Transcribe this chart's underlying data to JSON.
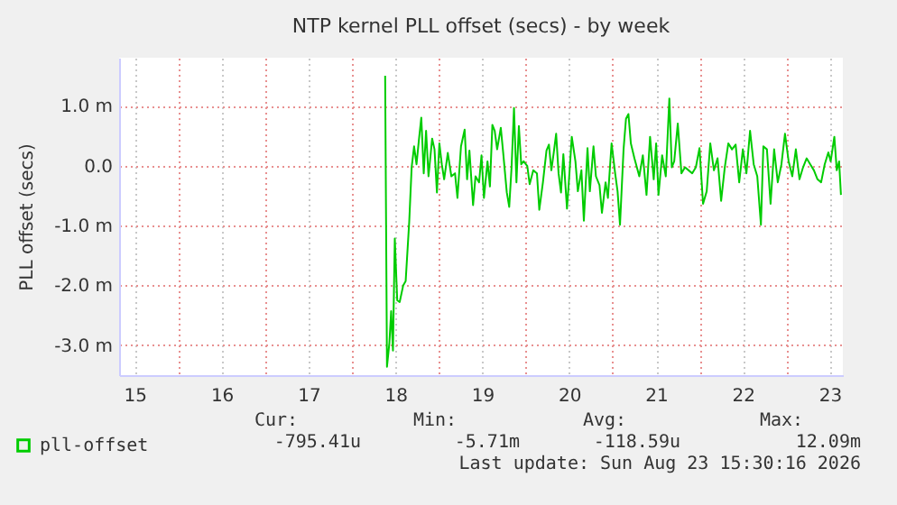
{
  "chart_data": {
    "type": "line",
    "title": "NTP kernel PLL offset (secs) - by week",
    "ylabel": "PLL offset (secs)",
    "xlim": [
      14.82,
      23.15
    ],
    "xticks": [
      15,
      {
        "value": 15.5,
        "label": null
      },
      16,
      {
        "value": 16.5,
        "label": null
      },
      17,
      {
        "value": 17.5,
        "label": null
      },
      18,
      {
        "value": 18.5,
        "label": null
      },
      19,
      {
        "value": 19.5,
        "label": null
      },
      20,
      {
        "value": 20.5,
        "label": null
      },
      21,
      {
        "value": 21.5,
        "label": null
      },
      22,
      {
        "value": 22.5,
        "label": null
      },
      23
    ],
    "ylim": [
      -3.5,
      1.8
    ],
    "yticks": [
      {
        "value": -3,
        "label": "-3.0 m"
      },
      {
        "value": -2,
        "label": "-2.0 m"
      },
      {
        "value": -1,
        "label": "-1.0 m"
      },
      {
        "value": 0,
        "label": "0.0"
      },
      {
        "value": 1,
        "label": "1.0 m"
      }
    ],
    "grid": true,
    "legend": "bottom",
    "marker": "none",
    "line_style": "solid",
    "x": [
      17.882,
      17.903,
      17.931,
      17.951,
      17.972,
      17.993,
      18.021,
      18.049,
      18.09,
      18.118,
      18.159,
      18.187,
      18.215,
      18.243,
      18.27,
      18.298,
      18.326,
      18.353,
      18.381,
      18.423,
      18.45,
      18.478,
      18.506,
      18.534,
      18.561,
      18.603,
      18.644,
      18.686,
      18.714,
      18.755,
      18.797,
      18.825,
      18.852,
      18.894,
      18.922,
      18.963,
      18.991,
      19.019,
      19.06,
      19.088,
      19.116,
      19.143,
      19.171,
      19.213,
      19.24,
      19.282,
      19.31,
      19.337,
      19.365,
      19.393,
      19.421,
      19.448,
      19.476,
      19.518,
      19.545,
      19.587,
      19.629,
      19.656,
      19.698,
      19.739,
      19.767,
      19.795,
      19.823,
      19.85,
      19.878,
      19.906,
      19.933,
      19.975,
      20.003,
      20.03,
      20.072,
      20.1,
      20.141,
      20.169,
      20.211,
      20.238,
      20.28,
      20.308,
      20.349,
      20.377,
      20.419,
      20.446,
      20.488,
      20.529,
      20.557,
      20.585,
      20.626,
      20.654,
      20.682,
      20.71,
      20.751,
      20.807,
      20.848,
      20.89,
      20.931,
      20.973,
      21.001,
      21.028,
      21.07,
      21.112,
      21.153,
      21.181,
      21.209,
      21.25,
      21.292,
      21.333,
      21.375,
      21.416,
      21.458,
      21.5,
      21.541,
      21.583,
      21.624,
      21.666,
      21.708,
      21.749,
      21.791,
      21.832,
      21.874,
      21.916,
      21.957,
      21.999,
      22.04,
      22.082,
      22.124,
      22.165,
      22.207,
      22.235,
      22.276,
      22.318,
      22.359,
      22.401,
      22.443,
      22.484,
      22.526,
      22.568,
      22.609,
      22.651,
      22.692,
      22.733,
      22.775,
      22.817,
      22.858,
      22.9,
      22.941,
      22.983,
      23.01,
      23.052,
      23.08,
      23.107,
      23.128
    ],
    "series": [
      {
        "name": "pll-offset",
        "color": "#00cc00",
        "values": [
          1.5,
          -3.36,
          -2.96,
          -2.43,
          -3.09,
          -1.22,
          -2.25,
          -2.28,
          -2.0,
          -1.93,
          -0.94,
          -0.03,
          0.32,
          0.02,
          0.42,
          0.8,
          -0.13,
          0.58,
          -0.18,
          0.45,
          0.27,
          -0.45,
          0.37,
          0.02,
          -0.23,
          0.21,
          -0.18,
          -0.13,
          -0.54,
          0.32,
          0.6,
          -0.23,
          0.25,
          -0.66,
          -0.18,
          -0.28,
          0.17,
          -0.54,
          0.07,
          -0.35,
          0.68,
          0.58,
          0.27,
          0.63,
          0.22,
          -0.45,
          -0.69,
          -0.03,
          0.96,
          -0.28,
          0.66,
          0.02,
          0.07,
          -0.01,
          -0.31,
          -0.08,
          -0.13,
          -0.74,
          -0.28,
          0.25,
          0.35,
          -0.08,
          0.22,
          0.53,
          -0.13,
          -0.45,
          0.19,
          -0.72,
          -0.13,
          0.48,
          0.07,
          -0.43,
          -0.08,
          -0.92,
          0.29,
          -0.43,
          0.32,
          -0.18,
          -0.33,
          -0.79,
          -0.28,
          -0.54,
          0.37,
          -0.13,
          -0.43,
          -0.99,
          0.27,
          0.78,
          0.86,
          0.37,
          0.12,
          -0.18,
          0.17,
          -0.49,
          0.48,
          -0.23,
          0.37,
          -0.49,
          0.17,
          -0.18,
          1.12,
          -0.03,
          0.07,
          0.7,
          -0.13,
          -0.03,
          -0.08,
          -0.13,
          -0.03,
          0.29,
          -0.64,
          -0.43,
          0.37,
          -0.08,
          0.12,
          -0.59,
          -0.03,
          0.37,
          0.27,
          0.35,
          -0.28,
          0.27,
          -0.13,
          0.58,
          0.02,
          -0.18,
          -0.99,
          0.32,
          0.27,
          -0.64,
          0.27,
          -0.28,
          0.02,
          0.53,
          0.07,
          -0.18,
          0.27,
          -0.23,
          -0.03,
          0.12,
          0.02,
          -0.08,
          -0.23,
          -0.28,
          0.02,
          0.22,
          0.07,
          0.48,
          -0.08,
          0.07,
          -0.49
        ]
      }
    ],
    "annotations": [
      "Cur:",
      "Min:",
      "Avg:",
      "Max:",
      "-795.41u",
      "-5.71m",
      "-118.59u",
      "12.09m",
      "Last update: Sun Aug 23 15:30:16 2026"
    ]
  }
}
